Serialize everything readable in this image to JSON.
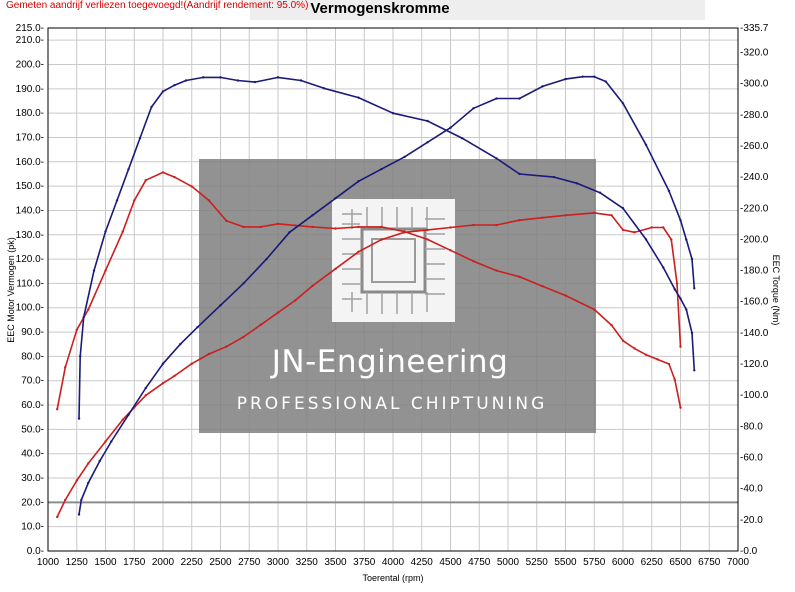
{
  "header": {
    "note": "Gemeten aandrijf verliezen toegevoegd!(Aandrijf rendement: 95.0%)",
    "title": "Vermogenskromme"
  },
  "watermark": {
    "line1": "JN-Engineering",
    "line2": "PROFESSIONAL CHIPTUNING"
  },
  "colors": {
    "stock": "#cc1f1f",
    "tuned": "#1a1a7a",
    "grid": "#c9c9c9",
    "watermark_box": "#7f7f7f"
  },
  "chart_data": {
    "type": "line",
    "title": "Vermogenskromme",
    "xlabel": "Toerental (rpm)",
    "ylabel": "EEC Motor Vermogen (pk)",
    "y2label": "EEC Torque (Nm)",
    "xlim": [
      1000,
      7000
    ],
    "ylim": [
      0,
      215
    ],
    "y2lim": [
      0,
      335.7
    ],
    "xticks": [
      "1000",
      "1250",
      "1500",
      "1750",
      "2000",
      "2250",
      "2500",
      "2750",
      "3000",
      "3250",
      "3500",
      "3750",
      "4000",
      "4250",
      "4500",
      "4750",
      "5000",
      "5250",
      "5500",
      "5750",
      "6000",
      "6250",
      "6500",
      "6750",
      "7000"
    ],
    "yticks": [
      "0.0",
      "10.0",
      "20.0",
      "30.0",
      "40.0",
      "50.0",
      "60.0",
      "70.0",
      "80.0",
      "90.0",
      "100.0",
      "110.0",
      "120.0",
      "130.0",
      "140.0",
      "150.0",
      "160.0",
      "170.0",
      "180.0",
      "190.0",
      "200.0",
      "210.0",
      "215.0"
    ],
    "y2ticks": [
      "0.0",
      "20.0",
      "40.0",
      "60.0",
      "80.0",
      "100.0",
      "120.0",
      "140.0",
      "160.0",
      "180.0",
      "200.0",
      "220.0",
      "240.0",
      "260.0",
      "280.0",
      "300.0",
      "320.0",
      "335.7"
    ],
    "grid": true,
    "reference_line_y": 20,
    "series": [
      {
        "axis": "right",
        "color": "#cc1f1f",
        "x": [
          1080,
          1150,
          1250,
          1350,
          1500,
          1650,
          1750,
          1850,
          2000,
          2100,
          2250,
          2400,
          2550,
          2700,
          2850,
          3000,
          3150,
          3300,
          3500,
          3700,
          3900,
          4100,
          4300,
          4500,
          4700,
          4900,
          5100,
          5300,
          5500,
          5750,
          5900,
          6000,
          6100,
          6200,
          6300,
          6400,
          6450,
          6500
        ],
        "values": [
          91,
          118,
          142,
          155,
          180,
          205,
          225,
          238,
          243,
          240,
          234,
          225,
          212,
          208,
          208,
          210,
          209,
          208,
          207,
          208,
          208,
          205,
          200,
          193,
          186,
          180,
          176,
          170,
          164,
          155,
          145,
          135,
          130,
          126,
          123,
          120,
          110,
          92
        ]
      },
      {
        "axis": "left",
        "color": "#cc1f1f",
        "x": [
          1080,
          1150,
          1250,
          1350,
          1500,
          1650,
          1750,
          1850,
          2000,
          2100,
          2250,
          2400,
          2550,
          2700,
          2850,
          3000,
          3150,
          3300,
          3500,
          3700,
          3900,
          4100,
          4300,
          4500,
          4700,
          4900,
          5100,
          5300,
          5500,
          5750,
          5900,
          6000,
          6100,
          6250,
          6350,
          6420,
          6470,
          6500
        ],
        "values": [
          14,
          21,
          29,
          36,
          45,
          54,
          59,
          64,
          69,
          72,
          77,
          81,
          84,
          88,
          93,
          98,
          103,
          109,
          116,
          123,
          128,
          131,
          132,
          133,
          134,
          134,
          136,
          137,
          138,
          139,
          138,
          132,
          131,
          133,
          133,
          128,
          110,
          84
        ]
      },
      {
        "axis": "right",
        "color": "#1a1a7a",
        "x": [
          1270,
          1280,
          1310,
          1400,
          1500,
          1600,
          1700,
          1800,
          1900,
          2000,
          2100,
          2200,
          2350,
          2500,
          2650,
          2800,
          3000,
          3200,
          3400,
          3700,
          4000,
          4300,
          4600,
          4900,
          5100,
          5400,
          5600,
          5800,
          6000,
          6200,
          6350,
          6450,
          6500,
          6550,
          6600,
          6620
        ],
        "values": [
          85,
          125,
          150,
          180,
          205,
          225,
          245,
          265,
          285,
          295,
          299,
          302,
          304,
          304,
          302,
          301,
          304,
          302,
          297,
          291,
          281,
          276,
          265,
          252,
          242,
          240,
          236,
          230,
          220,
          200,
          182,
          168,
          162,
          155,
          140,
          116
        ]
      },
      {
        "axis": "left",
        "color": "#1a1a7a",
        "x": [
          1270,
          1290,
          1350,
          1450,
          1550,
          1700,
          1850,
          2000,
          2150,
          2300,
          2500,
          2700,
          2900,
          3100,
          3300,
          3500,
          3700,
          3900,
          4100,
          4300,
          4500,
          4700,
          4900,
          5100,
          5300,
          5500,
          5650,
          5750,
          5850,
          6000,
          6200,
          6400,
          6500,
          6550,
          6600,
          6620
        ],
        "values": [
          15,
          21,
          28,
          37,
          45,
          56,
          67,
          77,
          85,
          92,
          101,
          110,
          120,
          131,
          138,
          145,
          152,
          157,
          162,
          168,
          174,
          182,
          186,
          186,
          191,
          194,
          195,
          195,
          193,
          184,
          167,
          148,
          136,
          128,
          120,
          108
        ]
      }
    ]
  }
}
